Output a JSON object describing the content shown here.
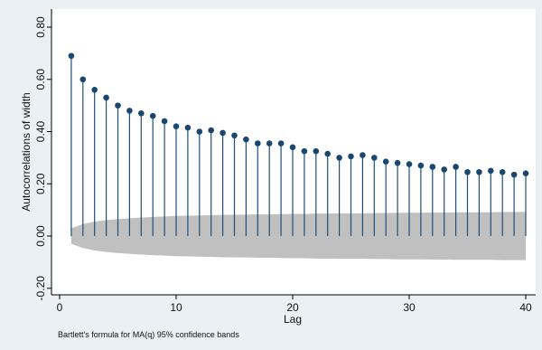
{
  "chart_data": {
    "type": "stem",
    "xlabel": "Lag",
    "ylabel": "Autocorrelations of width",
    "note": "Bartlett's formula for MA(q) 95% confidence bands",
    "xlim": [
      0,
      40
    ],
    "ylim": [
      -0.2,
      0.8
    ],
    "xticks": [
      0,
      10,
      20,
      30,
      40
    ],
    "xtick_labels": [
      "0",
      "10",
      "20",
      "30",
      "40"
    ],
    "yticks": [
      -0.2,
      0.0,
      0.2,
      0.4,
      0.6,
      0.8
    ],
    "ytick_labels": [
      "-0.20",
      "0.00",
      "0.20",
      "0.40",
      "0.60",
      "0.80"
    ],
    "lags": [
      1,
      2,
      3,
      4,
      5,
      6,
      7,
      8,
      9,
      10,
      11,
      12,
      13,
      14,
      15,
      16,
      17,
      18,
      19,
      20,
      21,
      22,
      23,
      24,
      25,
      26,
      27,
      28,
      29,
      30,
      31,
      32,
      33,
      34,
      35,
      36,
      37,
      38,
      39,
      40
    ],
    "values": [
      0.69,
      0.6,
      0.56,
      0.53,
      0.5,
      0.48,
      0.47,
      0.46,
      0.44,
      0.42,
      0.415,
      0.4,
      0.405,
      0.395,
      0.385,
      0.37,
      0.355,
      0.355,
      0.355,
      0.34,
      0.325,
      0.325,
      0.315,
      0.3,
      0.305,
      0.31,
      0.3,
      0.285,
      0.28,
      0.275,
      0.27,
      0.265,
      0.255,
      0.265,
      0.245,
      0.245,
      0.25,
      0.245,
      0.235,
      0.24
    ],
    "confidence_band_upper": [
      0.03,
      0.046,
      0.055,
      0.061,
      0.065,
      0.068,
      0.071,
      0.073,
      0.075,
      0.077,
      0.078,
      0.079,
      0.08,
      0.081,
      0.082,
      0.082,
      0.083,
      0.083,
      0.084,
      0.085,
      0.085,
      0.086,
      0.086,
      0.087,
      0.087,
      0.087,
      0.088,
      0.088,
      0.089,
      0.089,
      0.089,
      0.09,
      0.09,
      0.091,
      0.091,
      0.091,
      0.091,
      0.092,
      0.092,
      0.092
    ],
    "colors": {
      "stem": "#1f4e79",
      "marker": "#1a476f",
      "band": "#c0c0c0",
      "plot_bg": "#ffffff",
      "page_bg": "#eaf0f3"
    }
  }
}
